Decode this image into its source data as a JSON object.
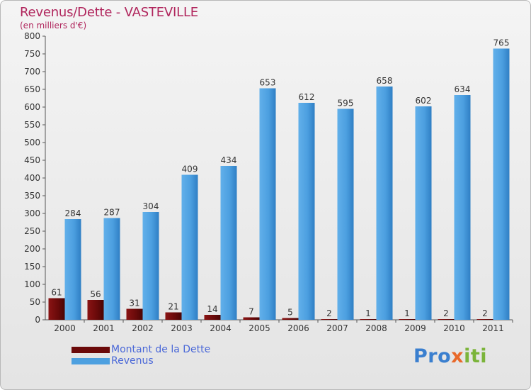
{
  "header": {
    "title": "Revenus/Dette - VASTEVILLE",
    "subtitle": "(en milliers d'€)"
  },
  "legend": {
    "items": [
      {
        "label": "Montant de la Dette",
        "color": "#6b0a0a"
      },
      {
        "label": "Revenus",
        "color": "#4da0e0"
      }
    ]
  },
  "logo": {
    "part1": "Pro",
    "part2": "x",
    "part3": "iti"
  },
  "chart_data": {
    "type": "bar",
    "categories": [
      "2000",
      "2001",
      "2002",
      "2003",
      "2004",
      "2005",
      "2006",
      "2007",
      "2008",
      "2009",
      "2010",
      "2011"
    ],
    "series": [
      {
        "name": "Montant de la Dette",
        "color": "#6b0a0a",
        "values": [
          61,
          56,
          31,
          21,
          14,
          7,
          5,
          2,
          1,
          1,
          2,
          2
        ]
      },
      {
        "name": "Revenus",
        "color": "#4da0e0",
        "values": [
          284,
          287,
          304,
          409,
          434,
          653,
          612,
          595,
          658,
          602,
          634,
          765
        ]
      }
    ],
    "yticks": [
      0,
      50,
      100,
      150,
      200,
      250,
      300,
      350,
      400,
      450,
      500,
      550,
      600,
      650,
      700,
      750,
      800
    ],
    "ylim": [
      0,
      800
    ],
    "title": "Revenus/Dette - VASTEVILLE",
    "ylabel": "(en milliers d'€)",
    "xlabel": ""
  }
}
